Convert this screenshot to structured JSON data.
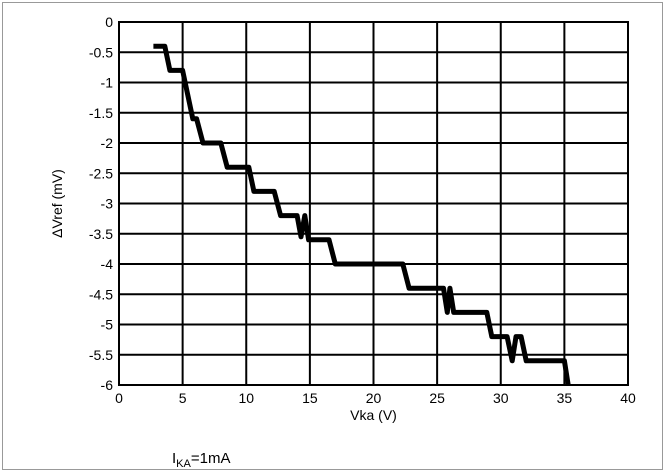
{
  "chart_data": {
    "type": "line",
    "title": "",
    "xlabel": "Vka (V)",
    "ylabel": "ΔVref (mV)",
    "xlim": [
      0,
      40
    ],
    "ylim": [
      -6,
      0
    ],
    "xticks": [
      0,
      5,
      10,
      15,
      20,
      25,
      30,
      35,
      40
    ],
    "yticks": [
      0,
      -0.5,
      -1,
      -1.5,
      -2,
      -2.5,
      -3,
      -3.5,
      -4,
      -4.5,
      -5,
      -5.5,
      -6
    ],
    "grid": true,
    "legend": "none",
    "line_color": "#000000",
    "series": [
      {
        "x": [
          2.7,
          3.6,
          4.0,
          5.0,
          5.4,
          5.8,
          6.1,
          6.6,
          8.0,
          8.5,
          10.2,
          10.6,
          12.2,
          12.7,
          14.0,
          14.3,
          14.6,
          14.9,
          15.1,
          16.5,
          17.0,
          22.3,
          22.8,
          25.5,
          25.8,
          26.0,
          26.3,
          26.6,
          28.9,
          29.3,
          30.5,
          30.9,
          31.2,
          31.6,
          32.0,
          35.0,
          35.3
        ],
        "y": [
          -0.4,
          -0.4,
          -0.8,
          -0.8,
          -1.2,
          -1.6,
          -1.6,
          -2.0,
          -2.0,
          -2.4,
          -2.4,
          -2.8,
          -2.8,
          -3.2,
          -3.2,
          -3.55,
          -3.2,
          -3.6,
          -3.6,
          -3.6,
          -4.0,
          -4.0,
          -4.4,
          -4.4,
          -4.8,
          -4.4,
          -4.8,
          -4.8,
          -4.8,
          -5.2,
          -5.2,
          -5.6,
          -5.2,
          -5.2,
          -5.6,
          -5.6,
          -6.0
        ]
      }
    ]
  },
  "note": {
    "prefix": "I",
    "subscript": "KA",
    "suffix": "=1mA"
  }
}
